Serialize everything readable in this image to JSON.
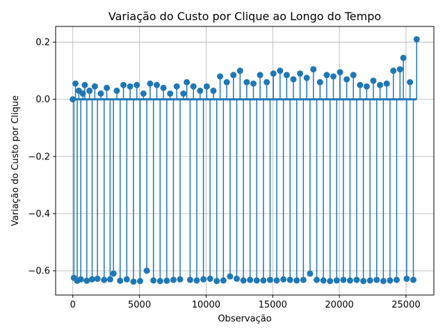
{
  "chart_data": {
    "type": "scatter",
    "style": "stem",
    "title": "Variação do Custo por Clique ao Longo do Tempo",
    "xlabel": "Observação",
    "ylabel": "Variação do Custo por Clique",
    "xlim": [
      -1290,
      27090
    ],
    "ylim": [
      -0.685,
      0.255
    ],
    "xticks": [
      0,
      5000,
      10000,
      15000,
      20000,
      25000
    ],
    "xtick_labels": [
      "0",
      "5000",
      "10000",
      "15000",
      "20000",
      "25000"
    ],
    "yticks": [
      -0.6,
      -0.4,
      -0.2,
      0.0,
      0.2
    ],
    "ytick_labels": [
      "−0.6",
      "−0.4",
      "−0.2",
      "0.0",
      "0.2"
    ],
    "grid": true,
    "baseline": 0,
    "color": "#1f77b4",
    "series": [
      {
        "x": [
          0,
          80,
          200,
          330,
          450,
          600,
          750,
          900,
          1050,
          1250,
          1450,
          1650,
          1850,
          2100,
          2350,
          2550,
          2800,
          3050,
          3300,
          3550,
          3800,
          4050,
          4300,
          4550,
          4800,
          5050,
          5300,
          5550,
          5800,
          6050,
          6300,
          6550,
          6800,
          7050,
          7300,
          7550,
          7800,
          8050,
          8300,
          8550,
          8800,
          9050,
          9300,
          9550,
          9800,
          10050,
          10300,
          10550,
          10800,
          11050,
          11300,
          11550,
          11800,
          12050,
          12300,
          12550,
          12800,
          13050,
          13300,
          13550,
          13800,
          14050,
          14300,
          14550,
          14800,
          15050,
          15300,
          15550,
          15800,
          16050,
          16300,
          16550,
          16800,
          17050,
          17300,
          17550,
          17800,
          18050,
          18300,
          18550,
          18800,
          19050,
          19300,
          19550,
          19800,
          20050,
          20300,
          20550,
          20800,
          21050,
          21300,
          21550,
          21800,
          22050,
          22300,
          22550,
          22800,
          23050,
          23300,
          23550,
          23800,
          24050,
          24300,
          24550,
          24800,
          25050,
          25300,
          25550,
          25800
        ],
        "y": [
          0.0,
          -0.625,
          0.055,
          -0.635,
          0.03,
          -0.63,
          0.02,
          0.05,
          -0.635,
          0.03,
          -0.63,
          0.045,
          -0.628,
          0.02,
          -0.632,
          0.04,
          -0.63,
          -0.61,
          0.03,
          -0.635,
          0.05,
          -0.63,
          0.045,
          -0.638,
          0.05,
          -0.636,
          0.02,
          -0.6,
          0.055,
          -0.634,
          0.05,
          -0.636,
          0.04,
          -0.635,
          0.02,
          -0.632,
          0.045,
          -0.63,
          0.02,
          0.06,
          -0.632,
          0.045,
          -0.634,
          0.03,
          -0.63,
          0.045,
          -0.628,
          0.03,
          -0.636,
          0.08,
          -0.634,
          0.06,
          -0.62,
          0.085,
          -0.628,
          0.1,
          -0.634,
          0.06,
          -0.632,
          0.055,
          -0.634,
          0.085,
          -0.634,
          0.06,
          -0.632,
          0.09,
          -0.634,
          0.1,
          -0.63,
          0.085,
          -0.632,
          0.07,
          -0.634,
          0.09,
          -0.632,
          0.075,
          -0.61,
          0.105,
          -0.632,
          0.06,
          -0.634,
          0.085,
          -0.636,
          0.08,
          -0.634,
          0.095,
          -0.632,
          0.07,
          -0.634,
          0.085,
          -0.632,
          0.05,
          -0.636,
          0.045,
          -0.634,
          0.065,
          -0.632,
          0.05,
          -0.636,
          0.055,
          -0.634,
          0.1,
          -0.632,
          0.105,
          0.145,
          -0.628,
          0.06,
          -0.632,
          0.21
        ]
      }
    ]
  }
}
